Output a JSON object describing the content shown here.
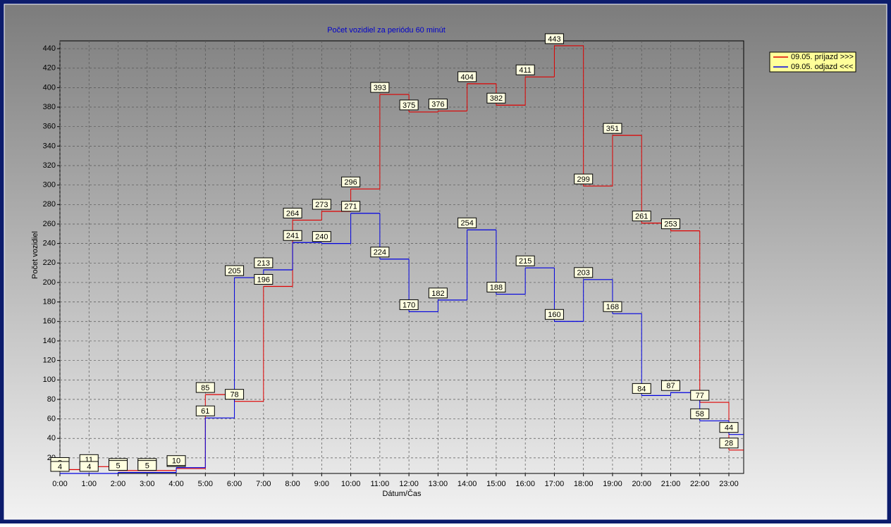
{
  "chart_data": {
    "type": "line",
    "step": "post",
    "title": "Počet vozidiel za periódu 60 minút",
    "x_label": "Dátum/Čas",
    "y_label": "Počet vozidiel",
    "categories": [
      "0:00",
      "1:00",
      "2:00",
      "3:00",
      "4:00",
      "5:00",
      "6:00",
      "7:00",
      "8:00",
      "9:00",
      "10:00",
      "11:00",
      "12:00",
      "13:00",
      "14:00",
      "15:00",
      "16:00",
      "17:00",
      "18:00",
      "19:00",
      "20:00",
      "21:00",
      "22:00",
      "23:00"
    ],
    "series": [
      {
        "name": "09.05.  príjazd >>>",
        "color": "#e00000",
        "values": [
          8,
          11,
          7,
          7,
          9,
          85,
          78,
          196,
          264,
          273,
          296,
          393,
          375,
          376,
          404,
          382,
          411,
          443,
          299,
          351,
          261,
          253,
          77,
          28
        ]
      },
      {
        "name": "09.05.  odjazd <<<",
        "color": "#0000e0",
        "values": [
          4,
          4,
          5,
          5,
          10,
          61,
          205,
          213,
          241,
          240,
          271,
          224,
          170,
          182,
          254,
          188,
          215,
          160,
          203,
          168,
          84,
          87,
          58,
          44
        ]
      }
    ],
    "ylim": [
      4,
      448
    ],
    "yticks": [
      20,
      40,
      60,
      80,
      100,
      120,
      140,
      160,
      180,
      200,
      220,
      240,
      260,
      280,
      300,
      320,
      340,
      360,
      380,
      400,
      420,
      440
    ],
    "grid": true,
    "legend": "right"
  }
}
